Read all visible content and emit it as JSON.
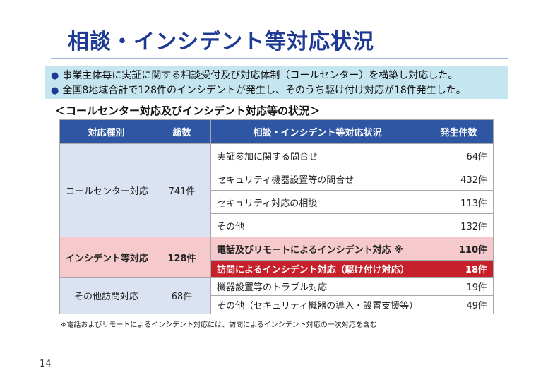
{
  "title": "相談・インシデント等対応状況",
  "bullets": [
    "事業主体毎に実証に関する相談受付及び対応体制（コールセンター）を構築し対応した。",
    "全国8地域合計で128件のインシデントが発生し、そのうち駆け付け対応が18件発生した。"
  ],
  "bullet_symbol": "●",
  "subheading": "＜コールセンター対応及びインシデント対応等の状況＞",
  "table": {
    "headers": [
      "対応種別",
      "総数",
      "相談・インシデント等対応状況",
      "発生件数"
    ],
    "groups": [
      {
        "type": "コールセンター対応",
        "total": "741件",
        "rows": [
          {
            "status": "実証参加に関する問合せ",
            "count": "64件"
          },
          {
            "status": "セキュリティ機器設置等の問合せ",
            "count": "432件"
          },
          {
            "status": "セキュリティ対応の相談",
            "count": "113件"
          },
          {
            "status": "その他",
            "count": "132件"
          }
        ]
      },
      {
        "type": "インシデント等対応",
        "total": "128件",
        "rows": [
          {
            "status": "電話及びリモートによるインシデント対応 ※",
            "count": "110件"
          },
          {
            "status": "訪問によるインシデント対応（駆け付け対応）",
            "count": "18件"
          }
        ]
      },
      {
        "type": "その他訪問対応",
        "total": "68件",
        "rows": [
          {
            "status": "機器設置等のトラブル対応",
            "count": "19件"
          },
          {
            "status": "その他（セキュリティ機器の導入・設置支援等）",
            "count": "49件"
          }
        ]
      }
    ]
  },
  "footnote": "※電話およびリモートによるインシデント対応には、訪問によるインシデント対応の一次対応を含む",
  "page_number": "14",
  "colors": {
    "title": "#1f3a93",
    "header_bg": "#2f56a3",
    "bullet_bg": "#c5e6f1",
    "merged_bg": "#dbe3f2",
    "incident_bg": "#f6c9cc",
    "visit_bg": "#c8202a"
  }
}
